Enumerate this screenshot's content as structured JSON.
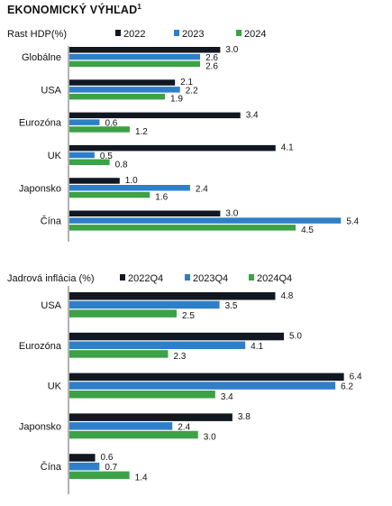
{
  "page": {
    "title": "EKONOMICKÝ VÝHĽAD",
    "title_sup": "1"
  },
  "colors": {
    "series1": "#111821",
    "series2": "#2f7fc8",
    "series3": "#3da146",
    "axis": "#666666"
  },
  "chart_data": [
    {
      "type": "bar",
      "orientation": "horizontal",
      "ylabel": "Rast HDP(%)",
      "categories": [
        "Globálne",
        "USA",
        "Eurozóna",
        "UK",
        "Japonsko",
        "Čína"
      ],
      "series": [
        {
          "name": "2022",
          "values": [
            3.0,
            2.1,
            3.4,
            4.1,
            1.0,
            3.0
          ]
        },
        {
          "name": "2023",
          "values": [
            2.6,
            2.2,
            0.6,
            0.5,
            2.4,
            5.4
          ]
        },
        {
          "name": "2024",
          "values": [
            2.6,
            1.9,
            1.2,
            0.8,
            1.6,
            4.5
          ]
        }
      ],
      "legend": "top",
      "grid": false
    },
    {
      "type": "bar",
      "orientation": "horizontal",
      "ylabel": "Jadrová inflácia (%)",
      "categories": [
        "USA",
        "Eurozóna",
        "UK",
        "Japonsko",
        "Čína"
      ],
      "series": [
        {
          "name": "2022Q4",
          "values": [
            4.8,
            5.0,
            6.4,
            3.8,
            0.6
          ]
        },
        {
          "name": "2023Q4",
          "values": [
            3.5,
            4.1,
            6.2,
            2.4,
            0.7
          ]
        },
        {
          "name": "2024Q4",
          "values": [
            2.5,
            2.3,
            3.4,
            3.0,
            1.4
          ]
        }
      ],
      "legend": "top",
      "grid": false
    }
  ]
}
